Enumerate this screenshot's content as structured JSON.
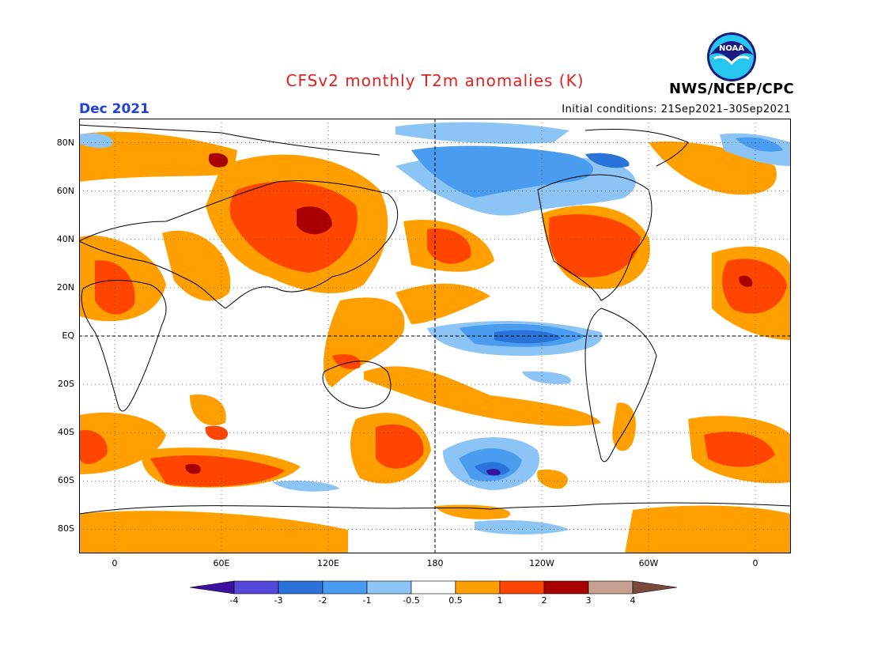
{
  "title": "CFSv2 monthly T2m anomalies (K)",
  "valid_month": "Dec 2021",
  "initial_conditions": "Initial conditions: 21Sep2021–30Sep2021",
  "agency": "NWS/NCEP/CPC",
  "logo": {
    "text": "NOAA",
    "icon": "noaa-logo-icon"
  },
  "map": {
    "projection": "cylindrical-equidistant",
    "lon_range": [
      -20,
      380
    ],
    "lat_range": [
      -90,
      90
    ],
    "center_line_lon": 180,
    "equator_line": true,
    "grid": "dotted",
    "lat_ticks": [
      {
        "lat": 80,
        "label": "80N"
      },
      {
        "lat": 60,
        "label": "60N"
      },
      {
        "lat": 40,
        "label": "40N"
      },
      {
        "lat": 20,
        "label": "20N"
      },
      {
        "lat": 0,
        "label": "EQ"
      },
      {
        "lat": -20,
        "label": "20S"
      },
      {
        "lat": -40,
        "label": "40S"
      },
      {
        "lat": -60,
        "label": "60S"
      },
      {
        "lat": -80,
        "label": "80S"
      }
    ],
    "lon_ticks": [
      {
        "lon": 0,
        "label": "0"
      },
      {
        "lon": 60,
        "label": "60E"
      },
      {
        "lon": 120,
        "label": "120E"
      },
      {
        "lon": 180,
        "label": "180"
      },
      {
        "lon": 240,
        "label": "120W"
      },
      {
        "lon": 300,
        "label": "60W"
      },
      {
        "lon": 360,
        "label": "0"
      }
    ]
  },
  "colorbar": {
    "boundaries": [
      "-4",
      "-3",
      "-2",
      "-1",
      "-0.5",
      "0.5",
      "1",
      "2",
      "3",
      "4"
    ],
    "colors": [
      "#3b0fa0",
      "#5547d8",
      "#2a73d8",
      "#4a9cf0",
      "#8cc4f6",
      "#ffffff",
      "#ff9f00",
      "#ff4500",
      "#a80000",
      "#c8a090",
      "#7a4a3a"
    ]
  }
}
